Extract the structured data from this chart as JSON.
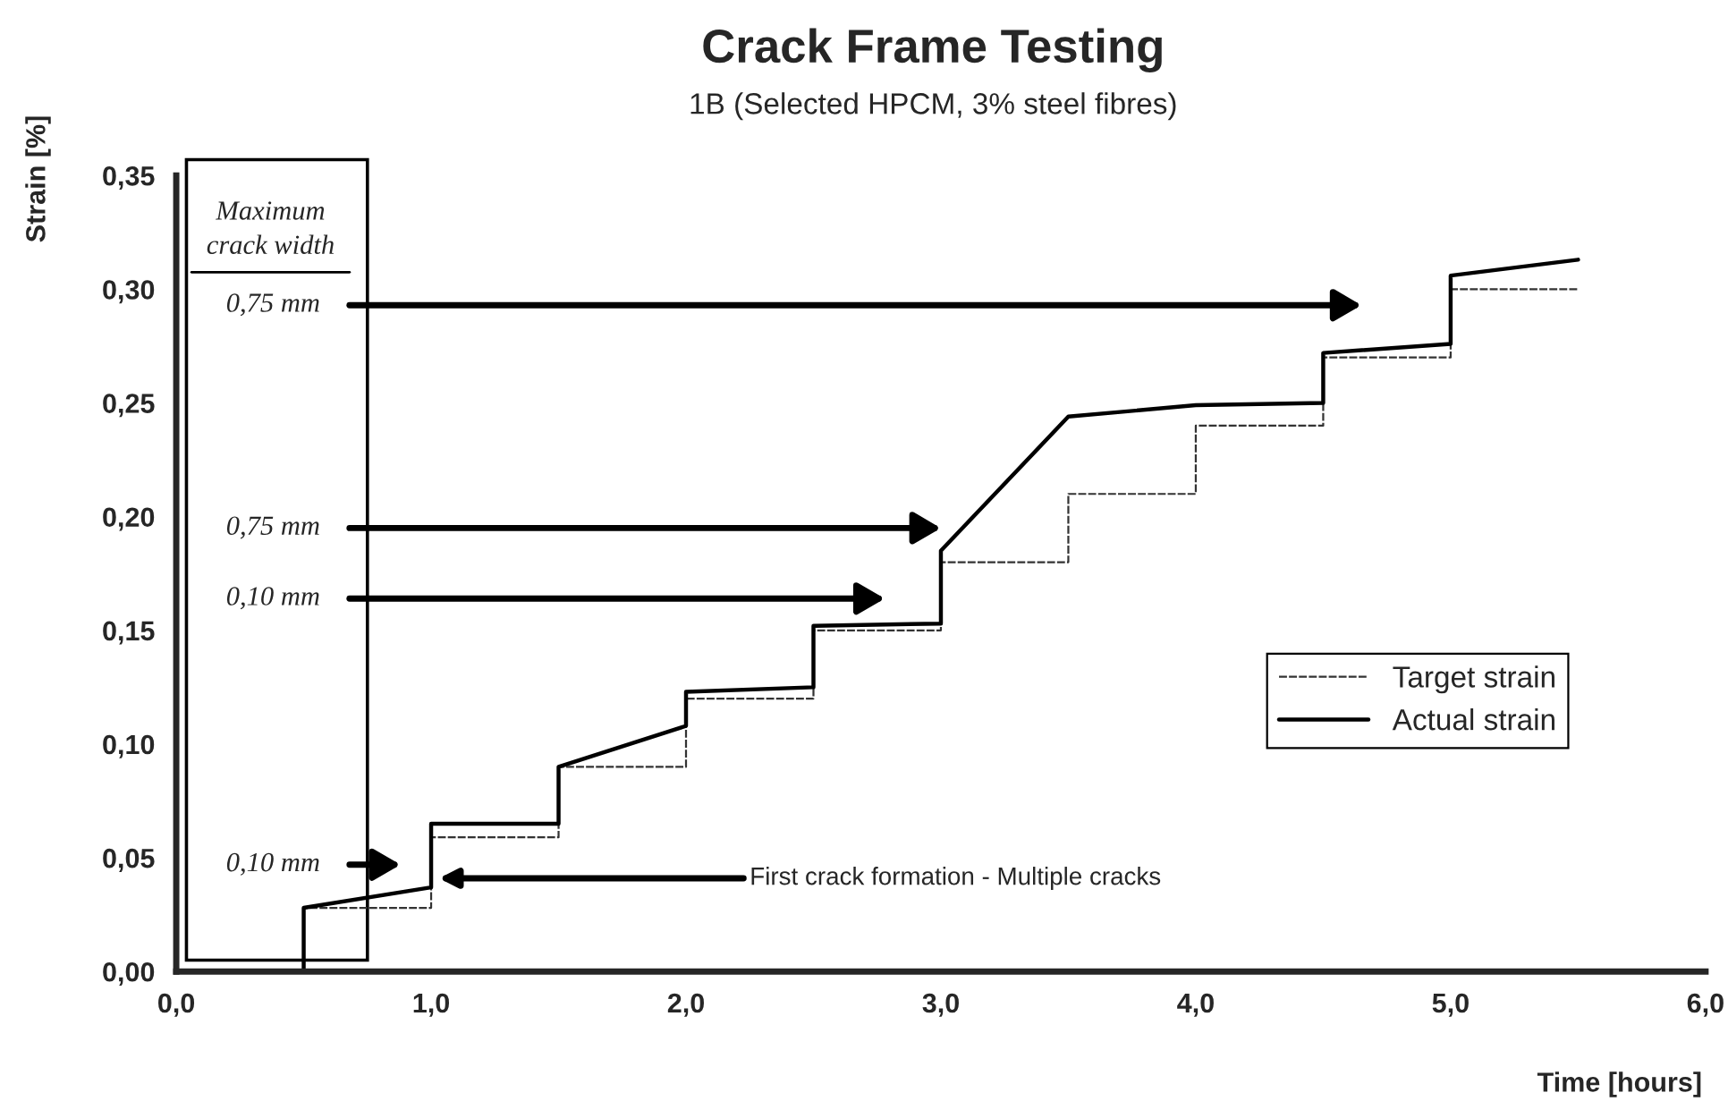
{
  "chart_data": {
    "type": "line",
    "title": "Crack Frame Testing",
    "subtitle": "1B (Selected HPCM, 3% steel fibres)",
    "xlabel": "Time [hours]",
    "ylabel": "Strain [%]",
    "series": [
      {
        "name": "Target strain",
        "color": "#333333",
        "line_style": "dashed",
        "x": [
          0.5,
          0.5,
          1.0,
          1.0,
          1.5,
          1.5,
          2.0,
          2.0,
          2.5,
          2.5,
          3.0,
          3.0,
          3.5,
          3.5,
          4.0,
          4.0,
          4.5,
          4.5,
          5.0,
          5.0,
          5.5
        ],
        "values": [
          0,
          0.028,
          0.028,
          0.059,
          0.059,
          0.09,
          0.09,
          0.12,
          0.12,
          0.15,
          0.15,
          0.18,
          0.18,
          0.21,
          0.21,
          0.24,
          0.24,
          0.27,
          0.27,
          0.3,
          0.3
        ]
      },
      {
        "name": "Actual strain",
        "color": "#000000",
        "line_style": "solid",
        "x": [
          0.5,
          0.5,
          1.0,
          1.0,
          1.5,
          1.5,
          2.0,
          2.0,
          2.5,
          2.5,
          3.0,
          3.0,
          3.5,
          4.0,
          4.5,
          4.5,
          5.0,
          5.0,
          5.5
        ],
        "values": [
          0,
          0.028,
          0.037,
          0.065,
          0.065,
          0.09,
          0.108,
          0.123,
          0.125,
          0.152,
          0.153,
          0.185,
          0.244,
          0.249,
          0.25,
          0.272,
          0.276,
          0.306,
          0.313
        ]
      }
    ],
    "xlim": [
      0,
      6
    ],
    "ylim": [
      0,
      0.35
    ],
    "xticks": [
      {
        "value": 0,
        "label": "0,0"
      },
      {
        "value": 1,
        "label": "1,0"
      },
      {
        "value": 2,
        "label": "2,0"
      },
      {
        "value": 3,
        "label": "3,0"
      },
      {
        "value": 4,
        "label": "4,0"
      },
      {
        "value": 5,
        "label": "5,0"
      },
      {
        "value": 6,
        "label": "6,0"
      }
    ],
    "yticks": [
      {
        "value": 0,
        "label": "0,00"
      },
      {
        "value": 0.05,
        "label": "0,05"
      },
      {
        "value": 0.1,
        "label": "0,10"
      },
      {
        "value": 0.15,
        "label": "0,15"
      },
      {
        "value": 0.2,
        "label": "0,20"
      },
      {
        "value": 0.25,
        "label": "0,25"
      },
      {
        "value": 0.3,
        "label": "0,30"
      },
      {
        "value": 0.35,
        "label": "0,35"
      }
    ],
    "grid": false,
    "legend": "right",
    "marker": "none",
    "annotations": [
      "Maximum\ncrack width",
      "0,75 mm",
      "0,75 mm",
      "0,10 mm",
      "0,10 mm",
      {
        "text": "First crack formation - Multiple cracks",
        "x": 1.03,
        "y": 0.041
      }
    ]
  }
}
